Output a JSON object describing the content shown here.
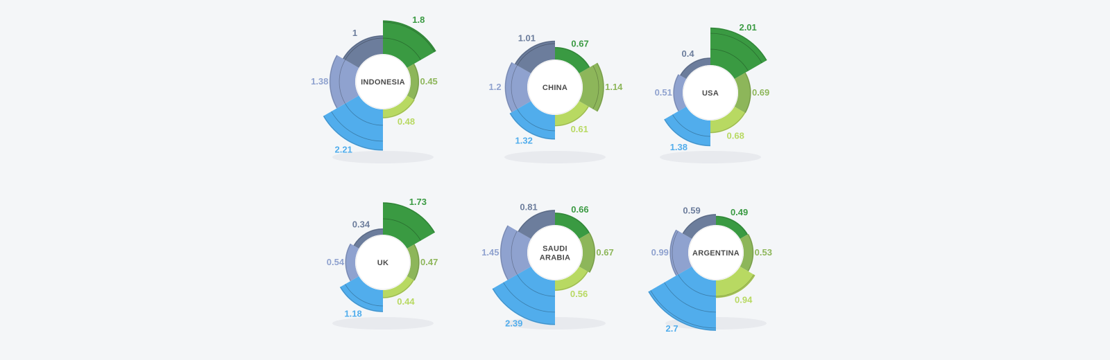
{
  "chart_data": {
    "type": "radial-bar",
    "legend": "none",
    "grid": false,
    "category_colors": [
      "#3a9a42",
      "#8db65a",
      "#b8d962",
      "#51adec",
      "#8fa2cf",
      "#6c7d9c"
    ],
    "charts": [
      {
        "name": "INDONESIA",
        "values": [
          1.8,
          0.45,
          0.48,
          2.21,
          1.38,
          1
        ]
      },
      {
        "name": "CHINA",
        "values": [
          0.67,
          1.14,
          0.61,
          1.32,
          1.2,
          1.01
        ]
      },
      {
        "name": "USA",
        "values": [
          2.01,
          0.69,
          0.68,
          1.38,
          0.51,
          0.4
        ]
      },
      {
        "name": "UK",
        "values": [
          1.73,
          0.47,
          0.44,
          1.18,
          0.54,
          0.34
        ]
      },
      {
        "name": "SAUDI ARABIA",
        "values": [
          0.66,
          0.67,
          0.56,
          2.39,
          1.45,
          0.81
        ]
      },
      {
        "name": "ARGENTINA",
        "values": [
          0.49,
          0.53,
          0.94,
          2.7,
          0.99,
          0.59
        ]
      }
    ]
  }
}
